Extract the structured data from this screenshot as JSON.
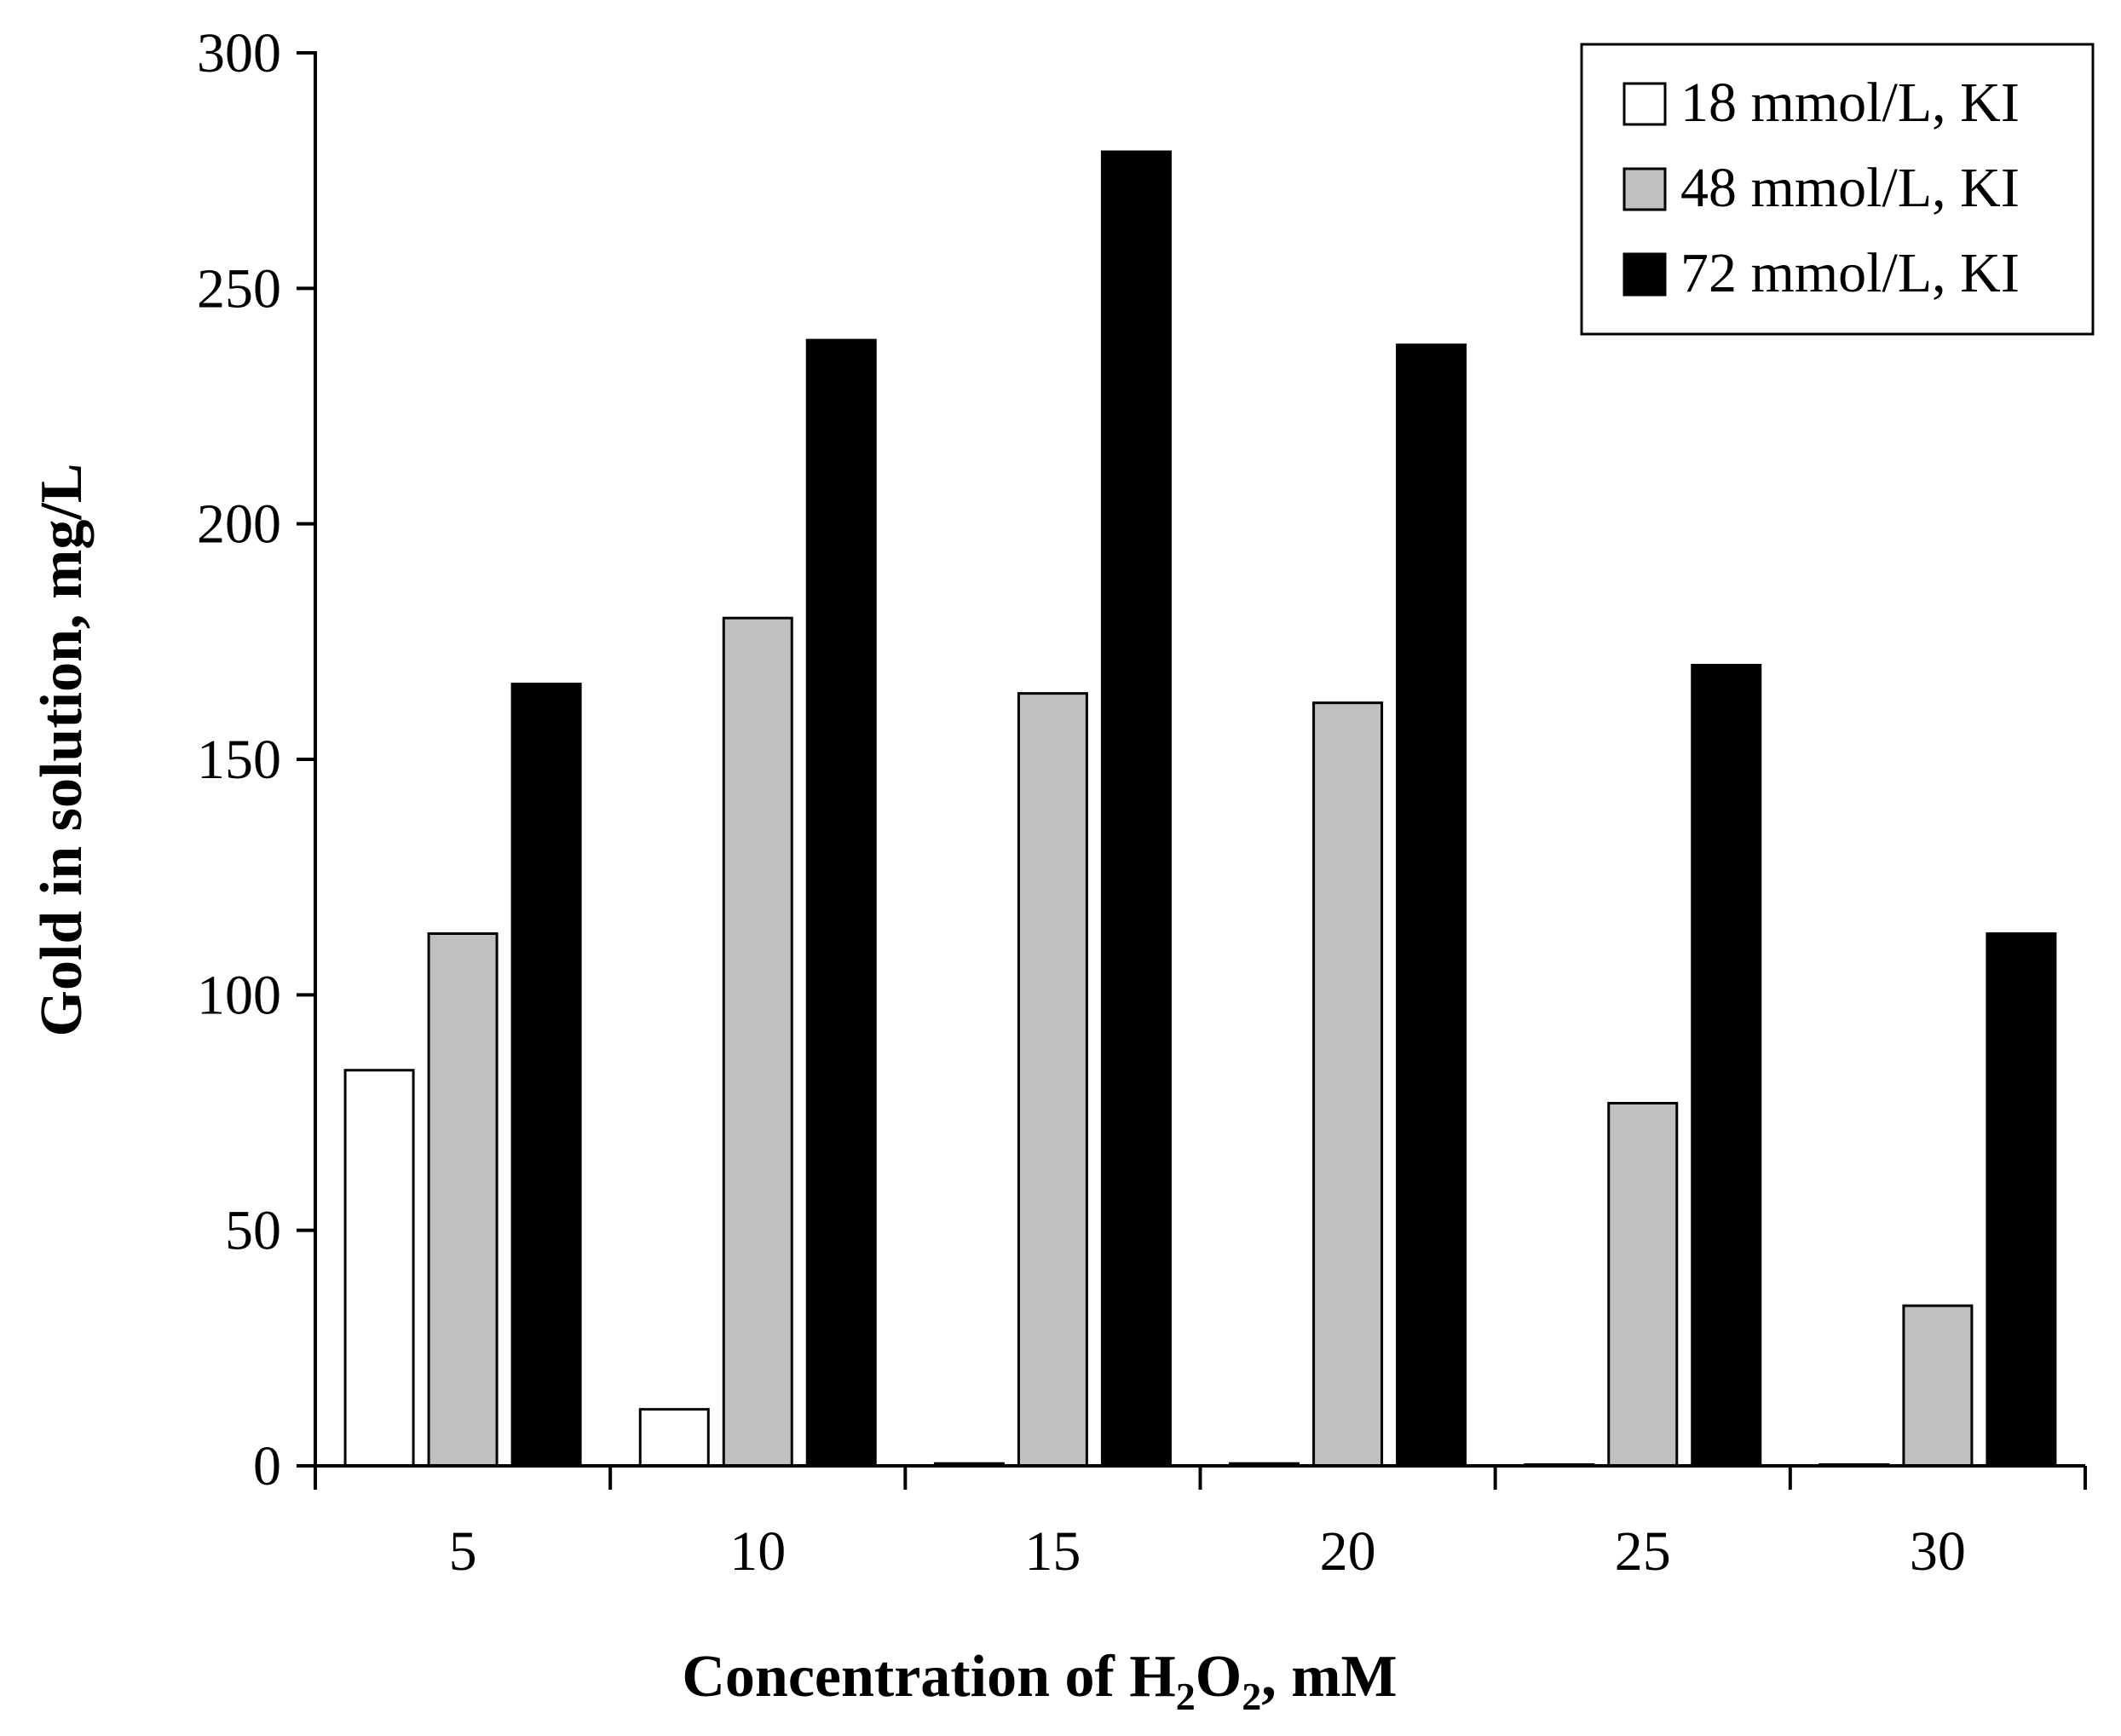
{
  "chart_data": {
    "type": "bar",
    "title": "",
    "xlabel_parts": {
      "prefix": "Concentration of H",
      "sub1": "2",
      "mid": "O",
      "sub2": "2",
      "suffix": ", mM"
    },
    "ylabel": "Gold in solution, mg/L",
    "categories": [
      "5",
      "10",
      "15",
      "20",
      "25",
      "30"
    ],
    "ylim": [
      0,
      300
    ],
    "yticks": [
      0,
      50,
      100,
      150,
      200,
      250,
      300
    ],
    "yticklabels": [
      "0",
      "50",
      "100",
      "150",
      "200",
      "250",
      "300"
    ],
    "grid": false,
    "legend_position": "top-right",
    "series": [
      {
        "name": "18 mmol/L, KI",
        "color": "#ffffff",
        "values": [
          84,
          12,
          0.5,
          0.5,
          0,
          0
        ]
      },
      {
        "name": "48 mmol/L, KI",
        "color": "#c0c0c0",
        "values": [
          113,
          180,
          164,
          162,
          77,
          34
        ]
      },
      {
        "name": "72 mmol/L, KI",
        "color": "#000000",
        "values": [
          166,
          239,
          279,
          238,
          170,
          113
        ]
      }
    ]
  }
}
